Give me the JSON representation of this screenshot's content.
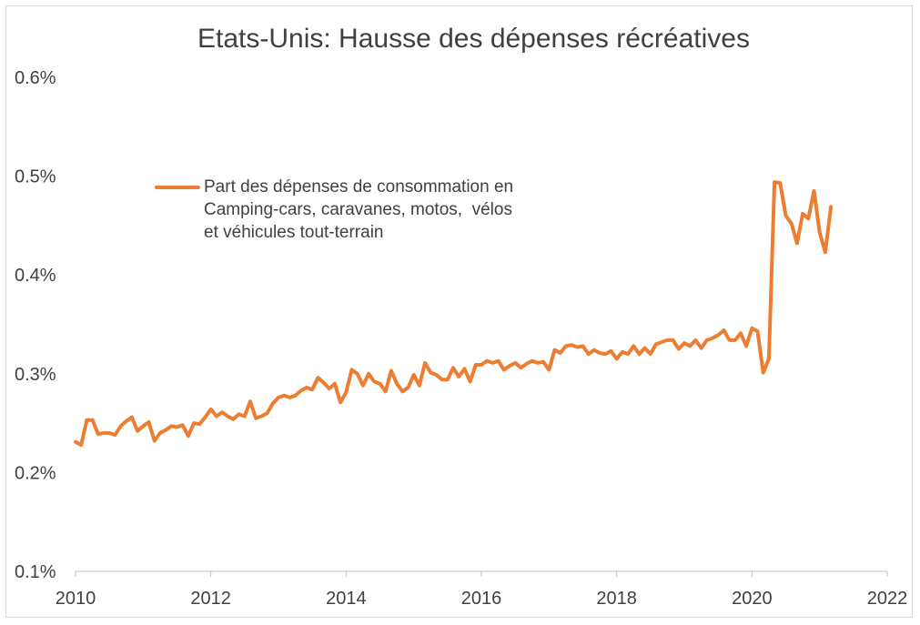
{
  "chart_data": {
    "type": "line",
    "title": "Etats-Unis: Hausse des dépenses récréatives",
    "xlabel": "",
    "ylabel": "",
    "xlim": [
      2010,
      2022
    ],
    "ylim": [
      0.1,
      0.6
    ],
    "x_ticks": [
      "2010",
      "2012",
      "2014",
      "2016",
      "2018",
      "2020",
      "2022"
    ],
    "y_ticks": [
      "0.1%",
      "0.2%",
      "0.3%",
      "0.4%",
      "0.5%",
      "0.6%"
    ],
    "grid": false,
    "legend_position": "upper-left",
    "series": [
      {
        "name": "Part des dépenses de consommation en Camping-cars, caravanes, motos,  vélos et véhicules tout-terrain",
        "legend_lines": [
          "Part des dépenses de consommation en",
          "Camping-cars, caravanes, motos,  vélos",
          "et véhicules tout-terrain"
        ],
        "color": "#ed7d31",
        "start": "2010-01",
        "frequency": "monthly",
        "values": [
          0.231,
          0.228,
          0.253,
          0.253,
          0.239,
          0.24,
          0.24,
          0.238,
          0.247,
          0.252,
          0.256,
          0.242,
          0.247,
          0.251,
          0.232,
          0.24,
          0.243,
          0.247,
          0.246,
          0.248,
          0.237,
          0.25,
          0.249,
          0.256,
          0.264,
          0.257,
          0.261,
          0.257,
          0.254,
          0.259,
          0.257,
          0.272,
          0.255,
          0.257,
          0.26,
          0.27,
          0.276,
          0.278,
          0.276,
          0.278,
          0.283,
          0.286,
          0.284,
          0.296,
          0.291,
          0.285,
          0.29,
          0.271,
          0.281,
          0.304,
          0.3,
          0.288,
          0.3,
          0.292,
          0.29,
          0.282,
          0.303,
          0.29,
          0.282,
          0.286,
          0.299,
          0.288,
          0.311,
          0.301,
          0.299,
          0.294,
          0.294,
          0.306,
          0.297,
          0.305,
          0.292,
          0.309,
          0.309,
          0.313,
          0.311,
          0.313,
          0.304,
          0.308,
          0.311,
          0.306,
          0.31,
          0.313,
          0.311,
          0.312,
          0.304,
          0.324,
          0.321,
          0.328,
          0.329,
          0.327,
          0.328,
          0.32,
          0.324,
          0.321,
          0.32,
          0.323,
          0.315,
          0.322,
          0.32,
          0.328,
          0.32,
          0.326,
          0.32,
          0.33,
          0.332,
          0.334,
          0.334,
          0.325,
          0.331,
          0.328,
          0.334,
          0.326,
          0.334,
          0.336,
          0.339,
          0.344,
          0.334,
          0.334,
          0.341,
          0.328,
          0.346,
          0.343,
          0.301,
          0.315,
          0.494,
          0.493,
          0.46,
          0.452,
          0.432,
          0.462,
          0.457,
          0.485,
          0.443,
          0.423,
          0.469
        ]
      }
    ]
  }
}
